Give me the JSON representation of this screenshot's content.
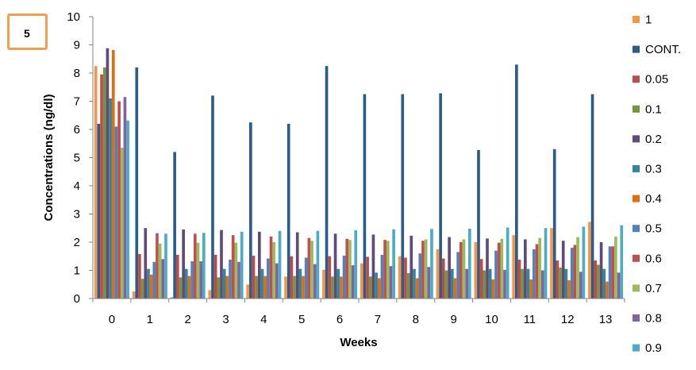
{
  "badge": {
    "label": "5"
  },
  "chart_data": {
    "type": "bar",
    "xlabel": "Weeks",
    "ylabel": "Concentrations (ng/dl)",
    "ylim": [
      0,
      10
    ],
    "yticks": [
      0,
      1,
      2,
      3,
      4,
      5,
      6,
      7,
      8,
      9,
      10
    ],
    "categories": [
      "0",
      "1",
      "2",
      "3",
      "4",
      "5",
      "6",
      "7",
      "8",
      "9",
      "10",
      "11",
      "12",
      "13"
    ],
    "grid": false,
    "legend_position": "right",
    "series": [
      {
        "name": "1",
        "color": "#f79646",
        "values": [
          8.25,
          0.25,
          0.05,
          0.3,
          0.5,
          0.78,
          1.02,
          1.25,
          1.5,
          1.75,
          2.0,
          2.25,
          2.5,
          2.72
        ]
      },
      {
        "name": "CONT.",
        "color": "#2c5d8a",
        "values": [
          6.2,
          8.2,
          5.2,
          7.2,
          6.25,
          6.2,
          8.25,
          7.25,
          7.25,
          7.28,
          5.27,
          8.3,
          5.3,
          7.25
        ]
      },
      {
        "name": "0.05",
        "color": "#be4b48",
        "values": [
          7.95,
          1.58,
          1.55,
          1.55,
          1.52,
          1.5,
          1.5,
          1.48,
          1.45,
          1.42,
          1.4,
          1.38,
          1.35,
          1.35
        ]
      },
      {
        "name": "0.1",
        "color": "#77933c",
        "values": [
          8.2,
          0.7,
          0.75,
          0.75,
          0.8,
          0.8,
          0.78,
          0.78,
          0.9,
          1.0,
          1.0,
          1.05,
          1.1,
          1.2
        ]
      },
      {
        "name": "0.2",
        "color": "#604a7b",
        "values": [
          8.88,
          2.5,
          2.45,
          2.43,
          2.37,
          2.35,
          2.3,
          2.27,
          2.23,
          2.18,
          2.13,
          2.1,
          2.05,
          2.0
        ]
      },
      {
        "name": "0.3",
        "color": "#31859c",
        "values": [
          7.1,
          1.05,
          1.05,
          1.05,
          1.05,
          1.05,
          1.05,
          0.92,
          1.05,
          1.05,
          1.05,
          1.05,
          1.05,
          1.05
        ]
      },
      {
        "name": "0.4",
        "color": "#e46c0a",
        "values": [
          8.82,
          0.85,
          0.8,
          0.8,
          0.8,
          0.8,
          0.78,
          0.72,
          0.72,
          0.72,
          0.68,
          0.68,
          0.65,
          0.6
        ]
      },
      {
        "name": "0.5",
        "color": "#4f81bd",
        "values": [
          6.1,
          1.3,
          1.32,
          1.38,
          1.42,
          1.45,
          1.52,
          1.55,
          1.6,
          1.65,
          1.7,
          1.75,
          1.8,
          1.85
        ]
      },
      {
        "name": "0.6",
        "color": "#c0504d",
        "values": [
          7.0,
          2.32,
          2.3,
          2.25,
          2.2,
          2.15,
          2.12,
          2.08,
          2.05,
          2.0,
          1.98,
          1.93,
          1.9,
          1.85
        ]
      },
      {
        "name": "0.7",
        "color": "#9bbb59",
        "values": [
          5.35,
          1.95,
          1.98,
          1.98,
          2.0,
          2.05,
          2.08,
          2.05,
          2.1,
          2.1,
          2.12,
          2.15,
          2.18,
          2.2
        ]
      },
      {
        "name": "0.8",
        "color": "#8064a2",
        "values": [
          7.15,
          1.4,
          1.32,
          1.3,
          1.25,
          1.22,
          1.18,
          1.15,
          1.12,
          1.05,
          1.02,
          1.0,
          0.95,
          0.92
        ]
      },
      {
        "name": "0.9",
        "color": "#4bacc6",
        "values": [
          6.32,
          2.3,
          2.33,
          2.37,
          2.4,
          2.4,
          2.42,
          2.45,
          2.47,
          2.48,
          2.52,
          2.5,
          2.55,
          2.6
        ]
      }
    ]
  }
}
